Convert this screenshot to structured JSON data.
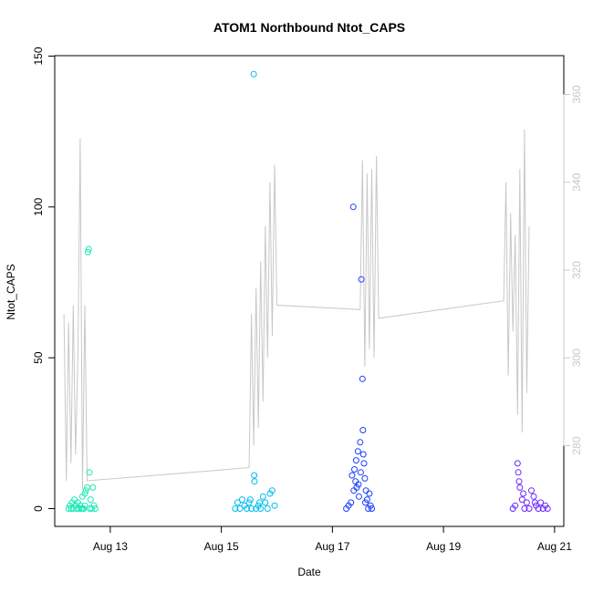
{
  "chart_data": {
    "type": "scatter",
    "title": "ATOM1 Northbound Ntot_CAPS",
    "xlabel": "Date",
    "ylabel": "Ntot_CAPS",
    "xlim": [
      "2023-08-12T00:00:00",
      "2023-08-21T04:00:00"
    ],
    "ylim": [
      0,
      150
    ],
    "y2lim": [
      261,
      367
    ],
    "x_ticks": [
      {
        "x": "2023-08-13T00:00:00",
        "label": "Aug 13"
      },
      {
        "x": "2023-08-15T00:00:00",
        "label": "Aug 15"
      },
      {
        "x": "2023-08-17T00:00:00",
        "label": "Aug 17"
      },
      {
        "x": "2023-08-19T00:00:00",
        "label": "Aug 19"
      },
      {
        "x": "2023-08-21T00:00:00",
        "label": "Aug 21"
      }
    ],
    "y_ticks": [
      0,
      50,
      100,
      150
    ],
    "y2_ticks": [
      280,
      300,
      320,
      340,
      360
    ],
    "grid": false,
    "series": [
      {
        "color": "#1de9b6",
        "points": [
          [
            "2023-08-12T06:00:00",
            0
          ],
          [
            "2023-08-12T06:30:00",
            1
          ],
          [
            "2023-08-12T07:00:00",
            0
          ],
          [
            "2023-08-12T07:30:00",
            2
          ],
          [
            "2023-08-12T08:00:00",
            0
          ],
          [
            "2023-08-12T08:30:00",
            3
          ],
          [
            "2023-08-12T09:00:00",
            1
          ],
          [
            "2023-08-12T09:30:00",
            0
          ],
          [
            "2023-08-12T10:00:00",
            2
          ],
          [
            "2023-08-12T10:30:00",
            0
          ],
          [
            "2023-08-12T11:00:00",
            1
          ],
          [
            "2023-08-12T11:30:00",
            0
          ],
          [
            "2023-08-12T12:00:00",
            4
          ],
          [
            "2023-08-12T12:30:00",
            0
          ],
          [
            "2023-08-12T13:00:00",
            1
          ],
          [
            "2023-08-12T13:30:00",
            6
          ],
          [
            "2023-08-12T14:00:00",
            7
          ],
          [
            "2023-08-12T14:20:00",
            85
          ],
          [
            "2023-08-12T14:40:00",
            86
          ],
          [
            "2023-08-12T15:00:00",
            12
          ],
          [
            "2023-08-12T15:10:00",
            0
          ],
          [
            "2023-08-12T15:30:00",
            3
          ],
          [
            "2023-08-12T16:00:00",
            0
          ],
          [
            "2023-08-12T16:30:00",
            7
          ],
          [
            "2023-08-12T17:00:00",
            1
          ],
          [
            "2023-08-12T17:30:00",
            0
          ],
          [
            "2023-08-12T13:00:00",
            5
          ],
          [
            "2023-08-12T12:00:00",
            0
          ]
        ]
      },
      {
        "color": "#00bcf0",
        "points": [
          [
            "2023-08-15T06:00:00",
            0
          ],
          [
            "2023-08-15T07:00:00",
            2
          ],
          [
            "2023-08-15T08:00:00",
            0
          ],
          [
            "2023-08-15T09:00:00",
            3
          ],
          [
            "2023-08-15T10:00:00",
            1
          ],
          [
            "2023-08-15T11:00:00",
            0
          ],
          [
            "2023-08-15T12:00:00",
            2
          ],
          [
            "2023-08-15T13:00:00",
            0
          ],
          [
            "2023-08-15T14:00:00",
            144
          ],
          [
            "2023-08-15T14:10:00",
            11
          ],
          [
            "2023-08-15T14:20:00",
            9
          ],
          [
            "2023-08-15T15:00:00",
            0
          ],
          [
            "2023-08-15T16:00:00",
            1
          ],
          [
            "2023-08-15T17:00:00",
            0
          ],
          [
            "2023-08-15T18:00:00",
            4
          ],
          [
            "2023-08-15T19:00:00",
            2
          ],
          [
            "2023-08-15T20:00:00",
            0
          ],
          [
            "2023-08-15T21:00:00",
            5
          ],
          [
            "2023-08-15T22:00:00",
            6
          ],
          [
            "2023-08-15T23:00:00",
            1
          ],
          [
            "2023-08-15T12:30:00",
            3
          ],
          [
            "2023-08-15T16:30:00",
            2
          ]
        ]
      },
      {
        "color": "#1a40ff",
        "points": [
          [
            "2023-08-17T06:00:00",
            0
          ],
          [
            "2023-08-17T07:00:00",
            1
          ],
          [
            "2023-08-17T08:00:00",
            2
          ],
          [
            "2023-08-17T09:00:00",
            100
          ],
          [
            "2023-08-17T09:30:00",
            13
          ],
          [
            "2023-08-17T10:00:00",
            9
          ],
          [
            "2023-08-17T10:30:00",
            7
          ],
          [
            "2023-08-17T11:00:00",
            19
          ],
          [
            "2023-08-17T11:30:00",
            4
          ],
          [
            "2023-08-17T12:00:00",
            22
          ],
          [
            "2023-08-17T12:30:00",
            76
          ],
          [
            "2023-08-17T13:00:00",
            43
          ],
          [
            "2023-08-17T13:10:00",
            26
          ],
          [
            "2023-08-17T13:20:00",
            18
          ],
          [
            "2023-08-17T13:40:00",
            15
          ],
          [
            "2023-08-17T14:00:00",
            10
          ],
          [
            "2023-08-17T14:30:00",
            6
          ],
          [
            "2023-08-17T15:00:00",
            3
          ],
          [
            "2023-08-17T15:30:00",
            0
          ],
          [
            "2023-08-17T16:00:00",
            5
          ],
          [
            "2023-08-17T16:30:00",
            1
          ],
          [
            "2023-08-17T17:00:00",
            0
          ],
          [
            "2023-08-17T08:30:00",
            11
          ],
          [
            "2023-08-17T10:15:00",
            16
          ],
          [
            "2023-08-17T11:15:00",
            8
          ],
          [
            "2023-08-17T12:15:00",
            12
          ],
          [
            "2023-08-17T14:15:00",
            2
          ],
          [
            "2023-08-17T09:15:00",
            6
          ]
        ]
      },
      {
        "color": "#6a2aff",
        "points": [
          [
            "2023-08-20T06:00:00",
            0
          ],
          [
            "2023-08-20T07:00:00",
            1
          ],
          [
            "2023-08-20T08:00:00",
            15
          ],
          [
            "2023-08-20T08:20:00",
            12
          ],
          [
            "2023-08-20T08:40:00",
            9
          ],
          [
            "2023-08-20T09:00:00",
            7
          ],
          [
            "2023-08-20T10:00:00",
            3
          ],
          [
            "2023-08-20T11:00:00",
            0
          ],
          [
            "2023-08-20T12:00:00",
            2
          ],
          [
            "2023-08-20T13:00:00",
            0
          ],
          [
            "2023-08-20T14:00:00",
            6
          ],
          [
            "2023-08-20T15:00:00",
            4
          ],
          [
            "2023-08-20T16:00:00",
            1
          ],
          [
            "2023-08-20T17:00:00",
            0
          ],
          [
            "2023-08-20T18:00:00",
            2
          ],
          [
            "2023-08-20T19:00:00",
            0
          ],
          [
            "2023-08-20T20:00:00",
            1
          ],
          [
            "2023-08-20T21:00:00",
            0
          ],
          [
            "2023-08-20T10:30:00",
            5
          ],
          [
            "2023-08-20T15:30:00",
            2
          ]
        ]
      }
    ],
    "line_series": {
      "axis": "right",
      "color": "#c8c8c8",
      "points": [
        [
          "2023-08-12T04:00:00",
          310
        ],
        [
          "2023-08-12T05:00:00",
          272
        ],
        [
          "2023-08-12T06:00:00",
          308
        ],
        [
          "2023-08-12T07:00:00",
          276
        ],
        [
          "2023-08-12T08:00:00",
          312
        ],
        [
          "2023-08-12T09:00:00",
          278
        ],
        [
          "2023-08-12T10:00:00",
          300
        ],
        [
          "2023-08-12T11:00:00",
          350
        ],
        [
          "2023-08-12T12:00:00",
          270
        ],
        [
          "2023-08-12T13:00:00",
          312
        ],
        [
          "2023-08-12T14:00:00",
          272
        ],
        [
          "2023-08-15T12:00:00",
          275
        ],
        [
          "2023-08-15T13:00:00",
          310
        ],
        [
          "2023-08-15T14:00:00",
          280
        ],
        [
          "2023-08-15T15:00:00",
          316
        ],
        [
          "2023-08-15T16:00:00",
          284
        ],
        [
          "2023-08-15T17:00:00",
          322
        ],
        [
          "2023-08-15T18:00:00",
          290
        ],
        [
          "2023-08-15T19:00:00",
          330
        ],
        [
          "2023-08-15T20:00:00",
          300
        ],
        [
          "2023-08-15T21:00:00",
          340
        ],
        [
          "2023-08-15T22:00:00",
          305
        ],
        [
          "2023-08-15T23:00:00",
          344
        ],
        [
          "2023-08-16T00:00:00",
          312
        ],
        [
          "2023-08-17T12:00:00",
          311
        ],
        [
          "2023-08-17T13:00:00",
          345
        ],
        [
          "2023-08-17T14:00:00",
          298
        ],
        [
          "2023-08-17T15:00:00",
          342
        ],
        [
          "2023-08-17T16:00:00",
          302
        ],
        [
          "2023-08-17T17:00:00",
          343
        ],
        [
          "2023-08-17T18:00:00",
          300
        ],
        [
          "2023-08-17T19:00:00",
          346
        ],
        [
          "2023-08-17T20:00:00",
          309
        ],
        [
          "2023-08-20T02:00:00",
          313
        ],
        [
          "2023-08-20T03:00:00",
          340
        ],
        [
          "2023-08-20T04:00:00",
          296
        ],
        [
          "2023-08-20T05:00:00",
          333
        ],
        [
          "2023-08-20T06:00:00",
          306
        ],
        [
          "2023-08-20T07:00:00",
          328
        ],
        [
          "2023-08-20T08:00:00",
          287
        ],
        [
          "2023-08-20T09:00:00",
          343
        ],
        [
          "2023-08-20T10:00:00",
          283
        ],
        [
          "2023-08-20T11:00:00",
          352
        ],
        [
          "2023-08-20T12:00:00",
          292
        ],
        [
          "2023-08-20T13:00:00",
          330
        ]
      ]
    }
  }
}
